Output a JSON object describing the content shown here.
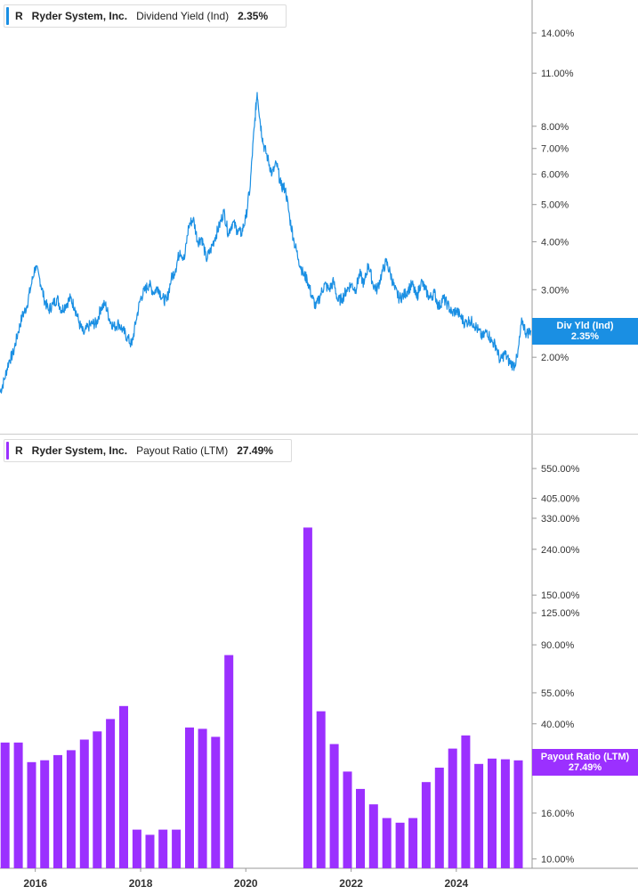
{
  "colors": {
    "line": "#1a8fe3",
    "bar": "#9b30ff",
    "axis": "#999999",
    "divider": "#cccccc"
  },
  "panels": [
    {
      "ticker": "R",
      "company": "Ryder System, Inc.",
      "metric": "Dividend Yield (Ind)",
      "value": "2.35%",
      "badge_label": "Div Yld (Ind)",
      "badge_value": "2.35%"
    },
    {
      "ticker": "R",
      "company": "Ryder System, Inc.",
      "metric": "Payout Ratio (LTM)",
      "value": "27.49%",
      "badge_label": "Payout Ratio (LTM)",
      "badge_value": "27.49%"
    }
  ],
  "chart_data": [
    {
      "type": "line",
      "scale": "log",
      "ylim": [
        1.5,
        15.5
      ],
      "y_ticks": [
        {
          "v": 14,
          "label": "14.00%"
        },
        {
          "v": 11,
          "label": "11.00%"
        },
        {
          "v": 8,
          "label": "8.00%"
        },
        {
          "v": 7,
          "label": "7.00%"
        },
        {
          "v": 6,
          "label": "6.00%"
        },
        {
          "v": 5,
          "label": "5.00%"
        },
        {
          "v": 4,
          "label": "4.00%"
        },
        {
          "v": 3,
          "label": "3.00%"
        },
        {
          "v": 2,
          "label": "2.00%"
        }
      ],
      "xlim": [
        "2015-05-01",
        "2025-06-10"
      ],
      "x_ticks": [
        "2016",
        "2018",
        "2020",
        "2022",
        "2024"
      ],
      "series": [
        {
          "points": [
            [
              "2015-05-01",
              1.62
            ],
            [
              "2015-06-01",
              1.75
            ],
            [
              "2015-07-01",
              1.95
            ],
            [
              "2015-08-01",
              2.05
            ],
            [
              "2015-09-01",
              2.3
            ],
            [
              "2015-10-01",
              2.55
            ],
            [
              "2015-11-01",
              2.7
            ],
            [
              "2015-12-01",
              3.05
            ],
            [
              "2016-01-01",
              3.45
            ],
            [
              "2016-02-01",
              3.2
            ],
            [
              "2016-03-01",
              2.85
            ],
            [
              "2016-04-01",
              2.65
            ],
            [
              "2016-05-01",
              2.75
            ],
            [
              "2016-06-01",
              2.85
            ],
            [
              "2016-07-01",
              2.65
            ],
            [
              "2016-08-01",
              2.75
            ],
            [
              "2016-09-01",
              2.85
            ],
            [
              "2016-10-01",
              2.7
            ],
            [
              "2016-11-01",
              2.45
            ],
            [
              "2016-12-01",
              2.3
            ],
            [
              "2017-01-01",
              2.4
            ],
            [
              "2017-02-01",
              2.45
            ],
            [
              "2017-03-01",
              2.45
            ],
            [
              "2017-04-01",
              2.7
            ],
            [
              "2017-05-01",
              2.75
            ],
            [
              "2017-06-01",
              2.5
            ],
            [
              "2017-07-01",
              2.4
            ],
            [
              "2017-08-01",
              2.45
            ],
            [
              "2017-09-01",
              2.35
            ],
            [
              "2017-10-01",
              2.25
            ],
            [
              "2017-11-01",
              2.15
            ],
            [
              "2017-12-01",
              2.5
            ],
            [
              "2018-01-01",
              2.85
            ],
            [
              "2018-02-01",
              3.0
            ],
            [
              "2018-03-01",
              3.1
            ],
            [
              "2018-04-01",
              2.95
            ],
            [
              "2018-05-01",
              3.05
            ],
            [
              "2018-06-01",
              2.85
            ],
            [
              "2018-07-01",
              2.8
            ],
            [
              "2018-08-01",
              3.2
            ],
            [
              "2018-09-01",
              3.4
            ],
            [
              "2018-10-01",
              3.8
            ],
            [
              "2018-11-01",
              3.6
            ],
            [
              "2018-12-01",
              4.4
            ],
            [
              "2019-01-01",
              4.6
            ],
            [
              "2019-02-01",
              4.0
            ],
            [
              "2019-03-01",
              4.1
            ],
            [
              "2019-04-01",
              3.6
            ],
            [
              "2019-05-01",
              3.8
            ],
            [
              "2019-06-01",
              4.1
            ],
            [
              "2019-07-01",
              4.4
            ],
            [
              "2019-08-01",
              4.8
            ],
            [
              "2019-09-01",
              4.2
            ],
            [
              "2019-10-01",
              4.5
            ],
            [
              "2019-11-01",
              4.3
            ],
            [
              "2019-12-01",
              4.2
            ],
            [
              "2020-01-01",
              4.6
            ],
            [
              "2020-02-01",
              5.6
            ],
            [
              "2020-03-01",
              8.0
            ],
            [
              "2020-03-20",
              9.8
            ],
            [
              "2020-04-10",
              8.2
            ],
            [
              "2020-05-01",
              7.2
            ],
            [
              "2020-06-01",
              6.6
            ],
            [
              "2020-07-01",
              6.0
            ],
            [
              "2020-08-01",
              6.4
            ],
            [
              "2020-09-01",
              5.6
            ],
            [
              "2020-10-01",
              5.5
            ],
            [
              "2020-11-01",
              4.6
            ],
            [
              "2020-12-01",
              4.0
            ],
            [
              "2021-01-01",
              3.6
            ],
            [
              "2021-02-01",
              3.3
            ],
            [
              "2021-03-01",
              3.2
            ],
            [
              "2021-04-01",
              2.9
            ],
            [
              "2021-05-01",
              2.7
            ],
            [
              "2021-06-01",
              2.9
            ],
            [
              "2021-07-01",
              3.1
            ],
            [
              "2021-08-01",
              3.0
            ],
            [
              "2021-09-01",
              3.15
            ],
            [
              "2021-10-01",
              2.8
            ],
            [
              "2021-11-01",
              2.85
            ],
            [
              "2021-12-01",
              3.0
            ],
            [
              "2022-01-01",
              3.1
            ],
            [
              "2022-02-01",
              3.0
            ],
            [
              "2022-03-01",
              3.3
            ],
            [
              "2022-04-01",
              3.1
            ],
            [
              "2022-05-01",
              3.5
            ],
            [
              "2022-06-01",
              3.1
            ],
            [
              "2022-07-01",
              3.0
            ],
            [
              "2022-08-01",
              3.3
            ],
            [
              "2022-09-01",
              3.55
            ],
            [
              "2022-10-01",
              3.3
            ],
            [
              "2022-11-01",
              3.0
            ],
            [
              "2022-12-01",
              2.85
            ],
            [
              "2023-01-01",
              2.9
            ],
            [
              "2023-02-01",
              3.0
            ],
            [
              "2023-03-01",
              3.1
            ],
            [
              "2023-04-01",
              2.85
            ],
            [
              "2023-05-01",
              3.15
            ],
            [
              "2023-06-01",
              3.0
            ],
            [
              "2023-07-01",
              2.85
            ],
            [
              "2023-08-01",
              2.95
            ],
            [
              "2023-09-01",
              2.7
            ],
            [
              "2023-10-01",
              2.85
            ],
            [
              "2023-11-01",
              2.75
            ],
            [
              "2023-12-01",
              2.6
            ],
            [
              "2024-01-01",
              2.65
            ],
            [
              "2024-02-01",
              2.55
            ],
            [
              "2024-03-01",
              2.45
            ],
            [
              "2024-04-01",
              2.5
            ],
            [
              "2024-05-01",
              2.45
            ],
            [
              "2024-06-01",
              2.35
            ],
            [
              "2024-07-01",
              2.25
            ],
            [
              "2024-08-01",
              2.35
            ],
            [
              "2024-09-01",
              2.2
            ],
            [
              "2024-10-01",
              2.15
            ],
            [
              "2024-11-01",
              1.95
            ],
            [
              "2024-12-01",
              2.05
            ],
            [
              "2025-01-01",
              1.95
            ],
            [
              "2025-02-01",
              1.9
            ],
            [
              "2025-03-01",
              2.0
            ],
            [
              "2025-04-01",
              2.5
            ],
            [
              "2025-05-01",
              2.3
            ],
            [
              "2025-06-01",
              2.35
            ]
          ]
        }
      ]
    },
    {
      "type": "bar",
      "scale": "log",
      "ylim": [
        9.5,
        620
      ],
      "y_ticks": [
        {
          "v": 550,
          "label": "550.00%"
        },
        {
          "v": 405,
          "label": "405.00%"
        },
        {
          "v": 330,
          "label": "330.00%"
        },
        {
          "v": 240,
          "label": "240.00%"
        },
        {
          "v": 150,
          "label": "150.00%"
        },
        {
          "v": 125,
          "label": "125.00%"
        },
        {
          "v": 90,
          "label": "90.00%"
        },
        {
          "v": 55,
          "label": "55.00%"
        },
        {
          "v": 40,
          "label": "40.00%"
        },
        {
          "v": 16,
          "label": "16.00%"
        },
        {
          "v": 10,
          "label": "10.00%"
        }
      ],
      "xlim": [
        "2015-05-01",
        "2025-06-10"
      ],
      "x_ticks": [
        "2016",
        "2018",
        "2020",
        "2022",
        "2024"
      ],
      "bars": [
        [
          "2015-06-30",
          33
        ],
        [
          "2015-09-30",
          33
        ],
        [
          "2015-12-31",
          27
        ],
        [
          "2016-03-31",
          27.5
        ],
        [
          "2016-06-30",
          29
        ],
        [
          "2016-09-30",
          30.5
        ],
        [
          "2016-12-31",
          34
        ],
        [
          "2017-03-31",
          37
        ],
        [
          "2017-06-30",
          42
        ],
        [
          "2017-09-30",
          48
        ],
        [
          "2017-12-31",
          13.5
        ],
        [
          "2018-03-31",
          12.8
        ],
        [
          "2018-06-30",
          13.5
        ],
        [
          "2018-09-30",
          13.5
        ],
        [
          "2018-12-31",
          38.5
        ],
        [
          "2019-03-31",
          38
        ],
        [
          "2019-06-30",
          35
        ],
        [
          "2019-09-30",
          81
        ],
        [
          "2021-03-31",
          300
        ],
        [
          "2021-06-30",
          45.5
        ],
        [
          "2021-09-30",
          32.5
        ],
        [
          "2021-12-31",
          24.5
        ],
        [
          "2022-03-31",
          20.5
        ],
        [
          "2022-06-30",
          17.5
        ],
        [
          "2022-09-30",
          15.2
        ],
        [
          "2022-12-31",
          14.5
        ],
        [
          "2023-03-31",
          15.2
        ],
        [
          "2023-06-30",
          22
        ],
        [
          "2023-09-30",
          25.5
        ],
        [
          "2023-12-31",
          31
        ],
        [
          "2024-03-31",
          35.5
        ],
        [
          "2024-06-30",
          26.5
        ],
        [
          "2024-09-30",
          28
        ],
        [
          "2024-12-31",
          27.8
        ],
        [
          "2025-03-31",
          27.49
        ]
      ]
    }
  ]
}
